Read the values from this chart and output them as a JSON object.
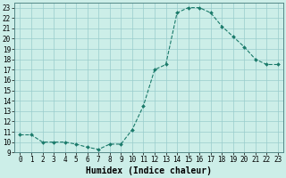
{
  "x": [
    0,
    1,
    2,
    3,
    4,
    5,
    6,
    7,
    8,
    9,
    10,
    11,
    12,
    13,
    14,
    15,
    16,
    17,
    18,
    19,
    20,
    21,
    22,
    23
  ],
  "y": [
    10.7,
    10.7,
    10.0,
    10.0,
    10.0,
    9.8,
    9.5,
    9.3,
    9.8,
    9.8,
    11.2,
    13.5,
    17.0,
    17.5,
    22.5,
    23.0,
    23.0,
    22.5,
    21.2,
    20.2,
    19.2,
    18.0,
    17.5,
    17.5
  ],
  "line_color": "#1a7a6a",
  "marker": "D",
  "marker_size": 2.0,
  "xlabel": "Humidex (Indice chaleur)",
  "bg_color": "#cceee8",
  "grid_color": "#99cccc",
  "xlim": [
    -0.5,
    23.5
  ],
  "ylim": [
    9.0,
    23.5
  ],
  "xticks": [
    0,
    1,
    2,
    3,
    4,
    5,
    6,
    7,
    8,
    9,
    10,
    11,
    12,
    13,
    14,
    15,
    16,
    17,
    18,
    19,
    20,
    21,
    22,
    23
  ],
  "yticks": [
    9,
    10,
    11,
    12,
    13,
    14,
    15,
    16,
    17,
    18,
    19,
    20,
    21,
    22,
    23
  ],
  "tick_label_fontsize": 5.5,
  "xlabel_fontsize": 7.0
}
